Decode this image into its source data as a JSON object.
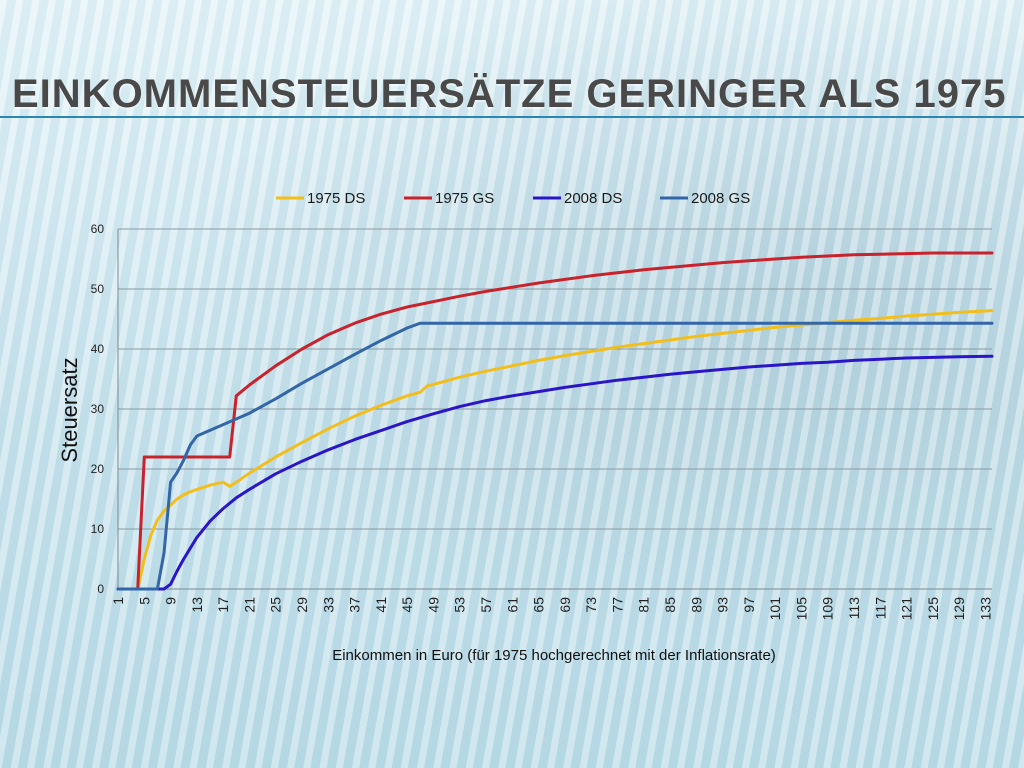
{
  "slide": {
    "title": "Einkommensteuersätze geringer als  1975"
  },
  "chart_data": {
    "type": "line",
    "title": "",
    "xlabel": "Einkommen in Euro (für 1975 hochgerechnet mit der Inflationsrate)",
    "ylabel": "Steuersatz",
    "ylim": [
      0,
      60
    ],
    "yticks": [
      0,
      10,
      20,
      30,
      40,
      50,
      60
    ],
    "xlim": [
      1,
      134
    ],
    "xtick_labels": [
      "1",
      "5",
      "9",
      "13",
      "17",
      "21",
      "25",
      "29",
      "33",
      "37",
      "41",
      "45",
      "49",
      "53",
      "57",
      "61",
      "65",
      "69",
      "73",
      "77",
      "81",
      "85",
      "89",
      "93",
      "97",
      "101",
      "105",
      "109",
      "113",
      "117",
      "121",
      "125",
      "129",
      "133"
    ],
    "grid": "horizontal",
    "legend_position": "top",
    "series": [
      {
        "name": "1975 DS",
        "color": "#F2BE1A",
        "points": [
          [
            1,
            0
          ],
          [
            4,
            0
          ],
          [
            5,
            5
          ],
          [
            6,
            9
          ],
          [
            7,
            11.5
          ],
          [
            8,
            13
          ],
          [
            9,
            14
          ],
          [
            10,
            15
          ],
          [
            11,
            15.7
          ],
          [
            12,
            16.2
          ],
          [
            13,
            16.6
          ],
          [
            15,
            17.3
          ],
          [
            17,
            17.8
          ],
          [
            18,
            17.1
          ],
          [
            19,
            17.8
          ],
          [
            21,
            19.3
          ],
          [
            25,
            22
          ],
          [
            29,
            24.4
          ],
          [
            33,
            26.7
          ],
          [
            37,
            28.8
          ],
          [
            41,
            30.6
          ],
          [
            45,
            32.2
          ],
          [
            47,
            32.8
          ],
          [
            48,
            33.8
          ],
          [
            49,
            34.1
          ],
          [
            53,
            35.3
          ],
          [
            57,
            36.3
          ],
          [
            61,
            37.2
          ],
          [
            65,
            38.1
          ],
          [
            69,
            38.9
          ],
          [
            73,
            39.6
          ],
          [
            77,
            40.3
          ],
          [
            81,
            40.9
          ],
          [
            85,
            41.5
          ],
          [
            89,
            42.1
          ],
          [
            93,
            42.6
          ],
          [
            97,
            43.1
          ],
          [
            101,
            43.6
          ],
          [
            105,
            44
          ],
          [
            109,
            44.4
          ],
          [
            113,
            44.8
          ],
          [
            117,
            45.1
          ],
          [
            121,
            45.5
          ],
          [
            125,
            45.8
          ],
          [
            129,
            46.1
          ],
          [
            134,
            46.4
          ]
        ]
      },
      {
        "name": "1975 GS",
        "color": "#C8232C",
        "points": [
          [
            1,
            0
          ],
          [
            4,
            0
          ],
          [
            5,
            22
          ],
          [
            18,
            22
          ],
          [
            19,
            32.2
          ],
          [
            21,
            34
          ],
          [
            25,
            37.2
          ],
          [
            29,
            40
          ],
          [
            33,
            42.4
          ],
          [
            37,
            44.3
          ],
          [
            41,
            45.8
          ],
          [
            45,
            47
          ],
          [
            49,
            47.9
          ],
          [
            53,
            48.8
          ],
          [
            57,
            49.6
          ],
          [
            61,
            50.3
          ],
          [
            65,
            51
          ],
          [
            69,
            51.6
          ],
          [
            73,
            52.2
          ],
          [
            77,
            52.7
          ],
          [
            81,
            53.2
          ],
          [
            85,
            53.6
          ],
          [
            89,
            54
          ],
          [
            93,
            54.4
          ],
          [
            97,
            54.7
          ],
          [
            101,
            55
          ],
          [
            105,
            55.3
          ],
          [
            109,
            55.5
          ],
          [
            113,
            55.7
          ],
          [
            117,
            55.8
          ],
          [
            121,
            55.9
          ],
          [
            125,
            56
          ],
          [
            129,
            56
          ],
          [
            134,
            56
          ]
        ]
      },
      {
        "name": "2008 DS",
        "color": "#2A16C8",
        "points": [
          [
            1,
            0
          ],
          [
            8,
            0
          ],
          [
            9,
            0.8
          ],
          [
            10,
            3
          ],
          [
            11,
            5
          ],
          [
            13,
            8.6
          ],
          [
            15,
            11.3
          ],
          [
            17,
            13.4
          ],
          [
            19,
            15.2
          ],
          [
            21,
            16.6
          ],
          [
            25,
            19.2
          ],
          [
            29,
            21.3
          ],
          [
            33,
            23.2
          ],
          [
            37,
            24.9
          ],
          [
            41,
            26.4
          ],
          [
            45,
            27.9
          ],
          [
            49,
            29.2
          ],
          [
            53,
            30.4
          ],
          [
            57,
            31.4
          ],
          [
            61,
            32.2
          ],
          [
            65,
            32.9
          ],
          [
            69,
            33.6
          ],
          [
            73,
            34.2
          ],
          [
            77,
            34.8
          ],
          [
            81,
            35.3
          ],
          [
            85,
            35.8
          ],
          [
            89,
            36.2
          ],
          [
            93,
            36.6
          ],
          [
            97,
            37
          ],
          [
            101,
            37.3
          ],
          [
            105,
            37.6
          ],
          [
            109,
            37.8
          ],
          [
            113,
            38.1
          ],
          [
            117,
            38.3
          ],
          [
            121,
            38.5
          ],
          [
            125,
            38.6
          ],
          [
            129,
            38.7
          ],
          [
            134,
            38.8
          ]
        ]
      },
      {
        "name": "2008 GS",
        "color": "#3366A8",
        "points": [
          [
            1,
            0
          ],
          [
            7,
            0
          ],
          [
            8,
            6
          ],
          [
            9,
            17.8
          ],
          [
            10,
            19.4
          ],
          [
            11,
            21.5
          ],
          [
            12,
            24
          ],
          [
            13,
            25.5
          ],
          [
            17,
            27.4
          ],
          [
            21,
            29.3
          ],
          [
            25,
            31.7
          ],
          [
            29,
            34.3
          ],
          [
            33,
            36.7
          ],
          [
            37,
            39.1
          ],
          [
            41,
            41.4
          ],
          [
            45,
            43.5
          ],
          [
            47,
            44.3
          ],
          [
            134,
            44.3
          ]
        ]
      }
    ]
  }
}
